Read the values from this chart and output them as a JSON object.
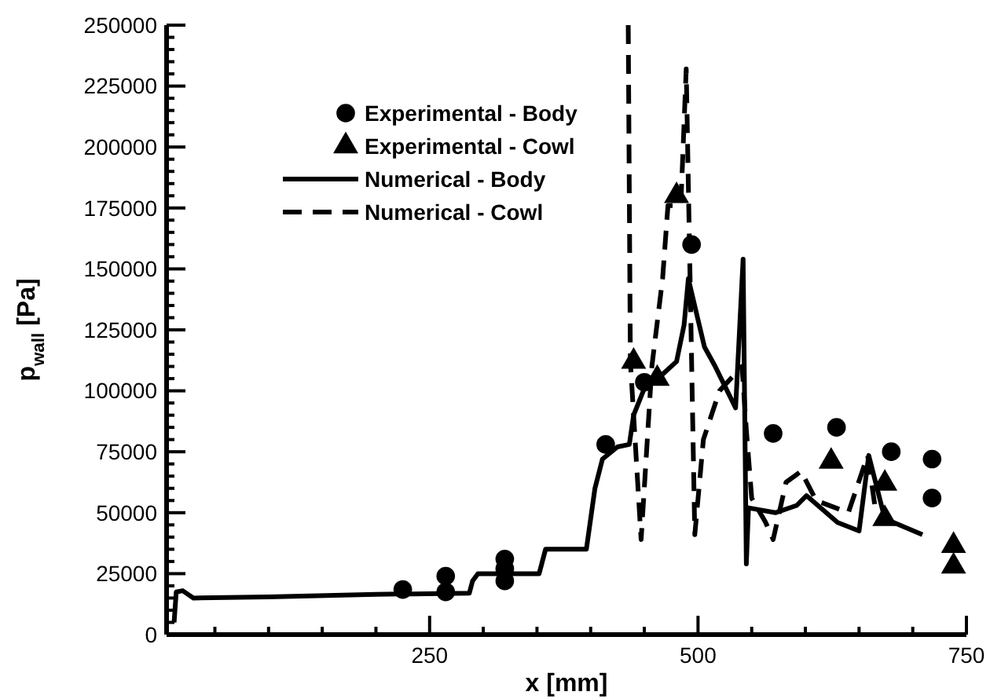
{
  "chart_data": {
    "type": "line",
    "xlabel": "x [mm]",
    "ylabel": "p$_{wall}$ [Pa]",
    "xlim": [
      5,
      750
    ],
    "ylim": [
      0,
      250000
    ],
    "xticks": [
      {
        "value": 50,
        "label": null
      },
      {
        "value": 100,
        "label": null
      },
      {
        "value": 150,
        "label": null
      },
      {
        "value": 200,
        "label": null
      },
      250,
      {
        "value": 300,
        "label": null
      },
      {
        "value": 350,
        "label": null
      },
      {
        "value": 400,
        "label": null
      },
      {
        "value": 450,
        "label": null
      },
      500,
      {
        "value": 550,
        "label": null
      },
      {
        "value": 600,
        "label": null
      },
      {
        "value": 650,
        "label": null
      },
      {
        "value": 700,
        "label": null
      },
      750
    ],
    "yticks": [
      0,
      {
        "value": 5000,
        "label": null
      },
      {
        "value": 10000,
        "label": null
      },
      {
        "value": 15000,
        "label": null
      },
      {
        "value": 20000,
        "label": null
      },
      25000,
      {
        "value": 30000,
        "label": null
      },
      {
        "value": 35000,
        "label": null
      },
      {
        "value": 40000,
        "label": null
      },
      {
        "value": 45000,
        "label": null
      },
      50000,
      {
        "value": 55000,
        "label": null
      },
      {
        "value": 60000,
        "label": null
      },
      {
        "value": 65000,
        "label": null
      },
      {
        "value": 70000,
        "label": null
      },
      75000,
      {
        "value": 80000,
        "label": null
      },
      {
        "value": 85000,
        "label": null
      },
      {
        "value": 90000,
        "label": null
      },
      {
        "value": 95000,
        "label": null
      },
      100000,
      {
        "value": 105000,
        "label": null
      },
      {
        "value": 110000,
        "label": null
      },
      {
        "value": 115000,
        "label": null
      },
      {
        "value": 120000,
        "label": null
      },
      125000,
      {
        "value": 130000,
        "label": null
      },
      {
        "value": 135000,
        "label": null
      },
      {
        "value": 140000,
        "label": null
      },
      {
        "value": 145000,
        "label": null
      },
      150000,
      {
        "value": 155000,
        "label": null
      },
      {
        "value": 160000,
        "label": null
      },
      {
        "value": 165000,
        "label": null
      },
      {
        "value": 170000,
        "label": null
      },
      175000,
      {
        "value": 180000,
        "label": null
      },
      {
        "value": 185000,
        "label": null
      },
      {
        "value": 190000,
        "label": null
      },
      {
        "value": 195000,
        "label": null
      },
      200000,
      {
        "value": 205000,
        "label": null
      },
      {
        "value": 210000,
        "label": null
      },
      {
        "value": 215000,
        "label": null
      },
      {
        "value": 220000,
        "label": null
      },
      225000,
      {
        "value": 230000,
        "label": null
      },
      {
        "value": 235000,
        "label": null
      },
      {
        "value": 240000,
        "label": null
      },
      {
        "value": 245000,
        "label": null
      },
      250000
    ],
    "grid": false,
    "legend": "top left",
    "series": [
      {
        "name": "Experimental - Body",
        "type": "scatter",
        "marker": "circle",
        "color": "#000000",
        "x": [
          225,
          265,
          265,
          320,
          320,
          320,
          414,
          450,
          494,
          570,
          629,
          680,
          718,
          718
        ],
        "values": [
          18500,
          24000,
          17500,
          31000,
          27000,
          22000,
          78000,
          103500,
          160000,
          82500,
          85000,
          75000,
          72000,
          56000
        ]
      },
      {
        "name": "Experimental - Cowl",
        "type": "scatter",
        "marker": "triangle",
        "color": "#000000",
        "x": [
          440,
          462,
          480,
          624,
          674,
          674,
          738,
          738
        ],
        "values": [
          112000,
          105000,
          180000,
          71000,
          62000,
          47500,
          36500,
          28000
        ]
      },
      {
        "name": "Numerical - Body",
        "type": "line",
        "line_style": "solid",
        "marker": "none",
        "color": "#000000",
        "x": [
          12,
          14,
          20,
          30,
          100,
          200,
          287,
          290,
          295,
          352,
          355,
          358,
          396,
          404,
          411,
          425,
          436,
          440,
          450,
          465,
          480,
          487,
          491,
          499,
          506,
          516,
          535,
          542,
          545,
          547,
          572,
          592,
          601,
          630,
          650,
          659,
          674,
          709
        ],
        "values": [
          5000,
          17500,
          18000,
          15000,
          15500,
          16500,
          17000,
          22000,
          25000,
          25000,
          30000,
          35000,
          35000,
          60000,
          72000,
          77000,
          78000,
          90000,
          101000,
          106000,
          112000,
          127000,
          146000,
          131000,
          118000,
          110000,
          93000,
          154000,
          29000,
          52000,
          50000,
          53000,
          57000,
          46000,
          42500,
          73500,
          47500,
          41000
        ]
      },
      {
        "name": "Numerical - Cowl",
        "type": "line",
        "line_style": "dashed",
        "marker": "none",
        "color": "#000000",
        "x": [
          435,
          437,
          447,
          457,
          467,
          472,
          484,
          489,
          497,
          505,
          520,
          541,
          545,
          550,
          563,
          570,
          582,
          596,
          610,
          640,
          658,
          665
        ],
        "values": [
          250000,
          112000,
          39000,
          110000,
          146000,
          176000,
          176000,
          232000,
          41000,
          80000,
          100000,
          110000,
          84000,
          56000,
          46000,
          39000,
          62500,
          67000,
          55000,
          50000,
          73500,
          52000
        ]
      }
    ]
  }
}
